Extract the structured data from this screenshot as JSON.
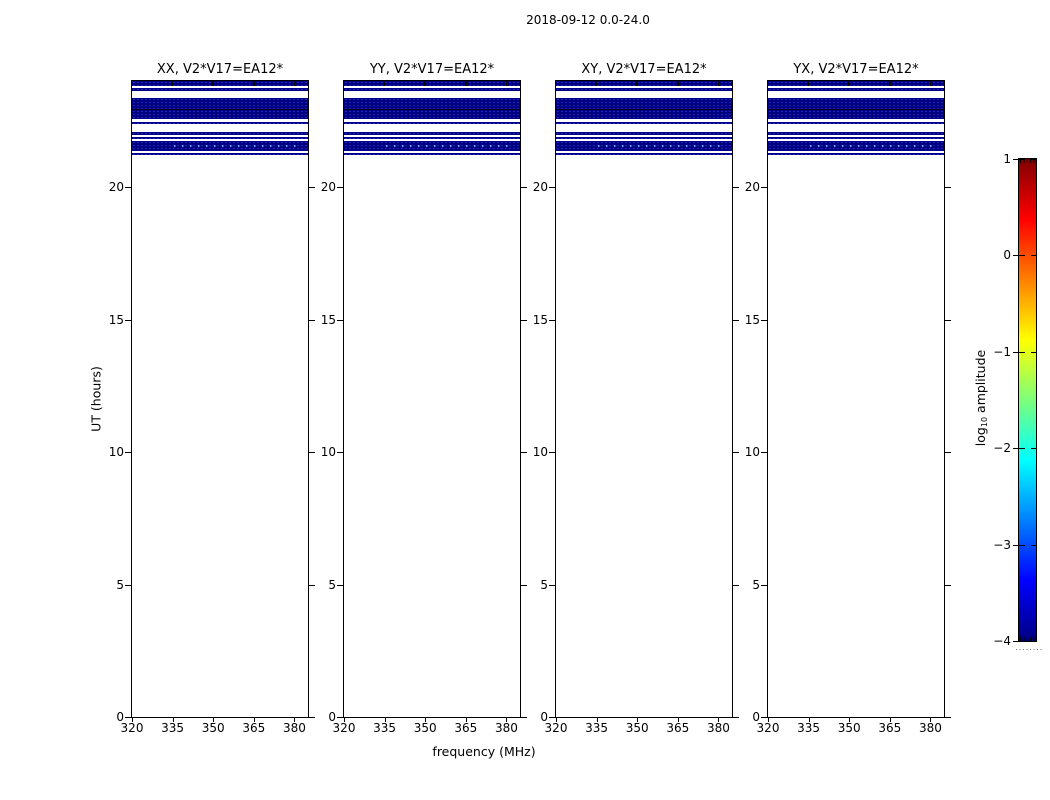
{
  "figure": {
    "title": "2018-09-12 0.0-24.0"
  },
  "chart_data": {
    "type": "heatmap",
    "title": "2018-09-12 0.0-24.0",
    "xlabel": "frequency (MHz)",
    "ylabel": "UT (hours)",
    "panels": [
      {
        "label": "XX, V2*V17=EA12*"
      },
      {
        "label": "YY, V2*V17=EA12*"
      },
      {
        "label": "XY, V2*V17=EA12*"
      },
      {
        "label": "YX, V2*V17=EA12*"
      }
    ],
    "x_range_mhz": [
      320,
      385
    ],
    "x_ticks_mhz": [
      320,
      335,
      350,
      365,
      380
    ],
    "y_range_hours": [
      0,
      24
    ],
    "y_ticks_hours": [
      0,
      5,
      10,
      15,
      20
    ],
    "band_color": "#000088",
    "speckle_color": "#6ea0ff",
    "data_bands_ut": [
      {
        "from": 24.0,
        "to": 23.8
      },
      {
        "from": 23.74,
        "to": 23.62
      },
      {
        "from": 23.35,
        "to": 22.57,
        "divider_at": 22.95
      },
      {
        "from": 22.47,
        "to": 22.36
      },
      {
        "from": 22.09,
        "to": 21.98
      },
      {
        "from": 21.9,
        "to": 21.81
      },
      {
        "from": 21.74,
        "to": 21.37,
        "speckled": true
      },
      {
        "from": 21.28,
        "to": 21.19
      }
    ],
    "colorbar": {
      "colormap": "jet",
      "value_range": [
        -4,
        1
      ],
      "ticks": [
        {
          "value": 1,
          "label": "1"
        },
        {
          "value": 0,
          "label": "0"
        },
        {
          "value": -1,
          "label": "−1"
        },
        {
          "value": -2,
          "label": "−2"
        },
        {
          "value": -3,
          "label": "−3"
        },
        {
          "value": -4,
          "label": "−4"
        }
      ],
      "label_prefix": "log",
      "label_sub": "10",
      "label_suffix": " amplitude",
      "gradient_stops": [
        {
          "pos": 0.0,
          "color": "#000080"
        },
        {
          "pos": 0.125,
          "color": "#0000ff"
        },
        {
          "pos": 0.375,
          "color": "#00ffff"
        },
        {
          "pos": 0.5,
          "color": "#7dff7a"
        },
        {
          "pos": 0.625,
          "color": "#ffff00"
        },
        {
          "pos": 0.875,
          "color": "#ff0000"
        },
        {
          "pos": 1.0,
          "color": "#800000"
        }
      ]
    }
  }
}
